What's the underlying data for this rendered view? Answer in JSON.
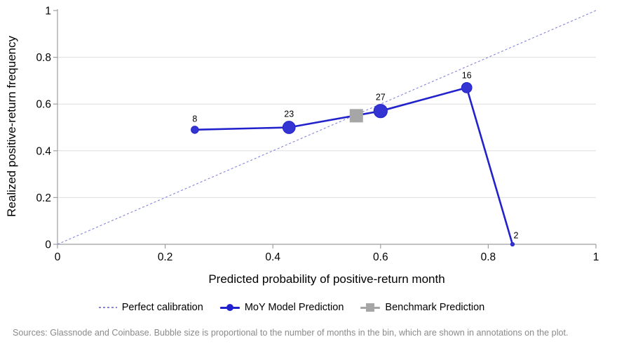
{
  "figure": {
    "footer": "Sources: Glassnode and Coinbase. Bubble size is proportional to the number of months in the bin, which are shown in annotations on the plot."
  },
  "legend": {
    "position": "bottom center",
    "items": [
      {
        "label": "Perfect calibration",
        "swatch": "dashed-line",
        "color": "#8383dc"
      },
      {
        "label": "MoY Model Prediction",
        "swatch": "line-with-circle",
        "color": "#2222cc"
      },
      {
        "label": "Benchmark Prediction",
        "swatch": "line-with-square",
        "color": "#a6a6a6"
      }
    ]
  },
  "chart_data": {
    "type": "line",
    "title": "",
    "xlabel": "Predicted probability of positive-return month",
    "ylabel": "Realized positive-return frequency",
    "xlim": [
      0,
      1
    ],
    "ylim": [
      0,
      1
    ],
    "x_ticks": [
      "0",
      "0.2",
      "0.4",
      "0.6",
      "0.8",
      "1"
    ],
    "y_ticks": [
      "0",
      "0.2",
      "0.4",
      "0.6",
      "0.8",
      "1"
    ],
    "tick_values": [
      0,
      0.2,
      0.4,
      0.6,
      0.8,
      1
    ],
    "grid": "horizontal gridlines only",
    "grid_values": [
      0.2,
      0.4,
      0.6,
      0.8
    ],
    "annotations": [
      "8",
      "23",
      "27",
      "16",
      "2"
    ],
    "series": [
      {
        "name": "Perfect calibration",
        "style": "dashed-diagonal",
        "color": "#8383dc",
        "x": [
          0,
          1
        ],
        "y": [
          0,
          1
        ]
      },
      {
        "name": "MoY Model Prediction",
        "style": "line+bubbles",
        "color": "#2222cc",
        "bubble_fill": "#3434d3",
        "bubble_scale": 1.85,
        "points": [
          {
            "x": 0.255,
            "y": 0.49,
            "months": 8
          },
          {
            "x": 0.43,
            "y": 0.5,
            "months": 23
          },
          {
            "x": 0.6,
            "y": 0.57,
            "months": 27
          },
          {
            "x": 0.76,
            "y": 0.67,
            "months": 16
          },
          {
            "x": 0.845,
            "y": 0.0,
            "months": 2
          }
        ]
      },
      {
        "name": "Benchmark Prediction",
        "style": "square-marker",
        "color": "#a6a6a6",
        "marker_size": 19,
        "points": [
          {
            "x": 0.555,
            "y": 0.55
          }
        ]
      }
    ]
  }
}
